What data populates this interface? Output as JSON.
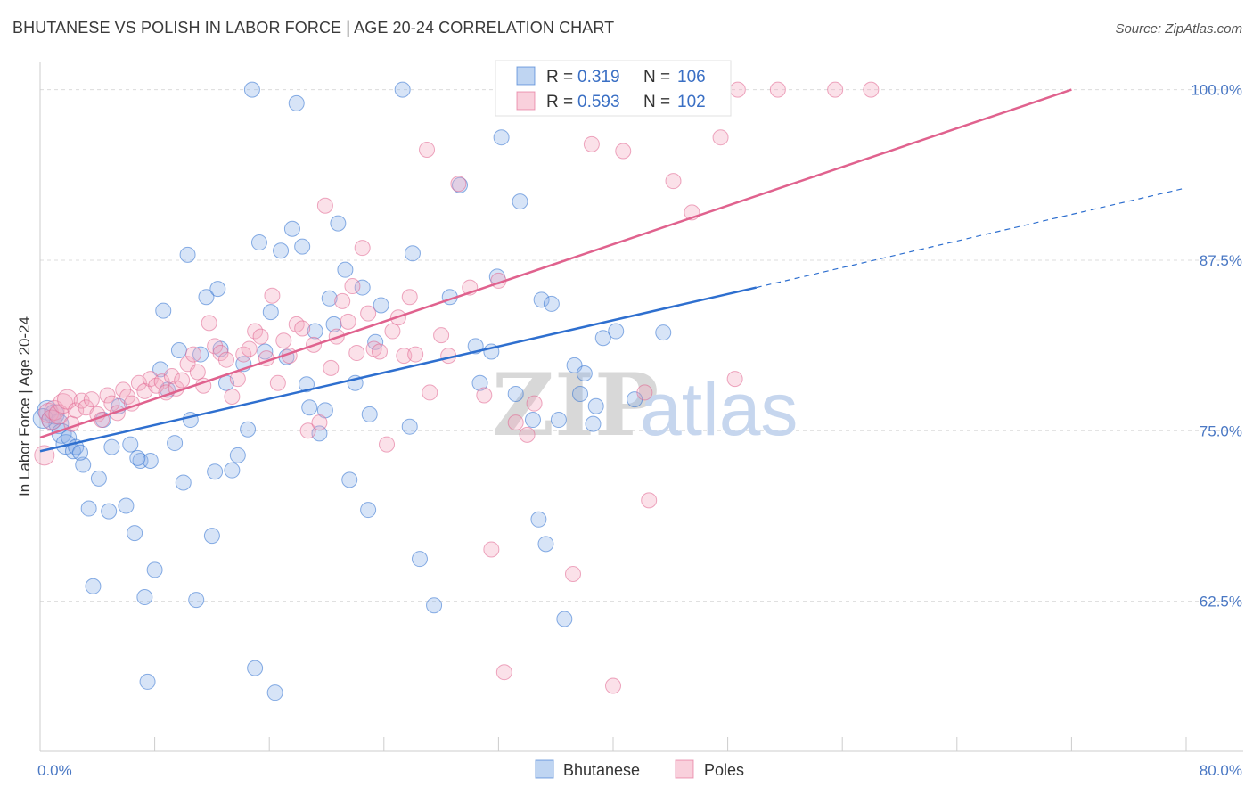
{
  "header": {
    "title": "BHUTANESE VS POLISH IN LABOR FORCE | AGE 20-24 CORRELATION CHART",
    "source_label": "Source: ZipAtlas.com"
  },
  "watermark": {
    "zip": "ZIP",
    "atlas": "atlas"
  },
  "legend": {
    "r_label": "R =",
    "n_label": "N =",
    "series": [
      {
        "name": "Bhutanese",
        "r": "0.319",
        "n": "106",
        "color": "#8bb3e8",
        "line": "#2e6fcf"
      },
      {
        "name": "Poles",
        "r": "0.593",
        "n": "102",
        "color": "#f4a9c0",
        "line": "#e0628e"
      }
    ]
  },
  "chart_data": {
    "type": "scatter",
    "title": "BHUTANESE VS POLISH IN LABOR FORCE | AGE 20-24 CORRELATION CHART",
    "xlabel": "",
    "ylabel": "In Labor Force | Age 20-24",
    "xlim": [
      0,
      80
    ],
    "ylim": [
      51.5,
      102
    ],
    "x_tick_labels": [
      "0.0%",
      "80.0%"
    ],
    "y_ticks": [
      62.5,
      75.0,
      87.5,
      100.0
    ],
    "y_tick_labels": [
      "62.5%",
      "75.0%",
      "87.5%",
      "100.0%"
    ],
    "grid": true,
    "legend_position": "top-center",
    "series": [
      {
        "name": "Bhutanese",
        "trend": {
          "x": [
            0,
            50
          ],
          "y": [
            73.5,
            85.5
          ],
          "extrapolate_to": [
            80,
            92.8
          ]
        },
        "points": [
          [
            0.5,
            76.5
          ],
          [
            0.8,
            75.8
          ],
          [
            1.0,
            76.2
          ],
          [
            1.3,
            75.5
          ],
          [
            1.5,
            74.8
          ],
          [
            1.8,
            74.0
          ],
          [
            2.0,
            74.5
          ],
          [
            2.3,
            73.5
          ],
          [
            2.5,
            73.8
          ],
          [
            3.0,
            72.5
          ],
          [
            3.4,
            69.3
          ],
          [
            3.7,
            63.6
          ],
          [
            4.1,
            71.5
          ],
          [
            4.4,
            75.8
          ],
          [
            4.8,
            69.1
          ],
          [
            5.0,
            73.8
          ],
          [
            5.5,
            76.8
          ],
          [
            6.0,
            69.5
          ],
          [
            6.3,
            74.0
          ],
          [
            6.6,
            67.5
          ],
          [
            7.0,
            72.8
          ],
          [
            7.3,
            62.8
          ],
          [
            7.5,
            56.6
          ],
          [
            7.7,
            72.8
          ],
          [
            8.0,
            64.8
          ],
          [
            8.4,
            79.5
          ],
          [
            8.6,
            83.8
          ],
          [
            8.9,
            78.0
          ],
          [
            9.4,
            74.1
          ],
          [
            9.7,
            80.9
          ],
          [
            10.0,
            71.2
          ],
          [
            10.3,
            87.9
          ],
          [
            10.5,
            75.8
          ],
          [
            10.9,
            62.6
          ],
          [
            11.2,
            80.6
          ],
          [
            11.6,
            84.8
          ],
          [
            12.0,
            67.3
          ],
          [
            12.4,
            85.4
          ],
          [
            12.6,
            81.0
          ],
          [
            13.0,
            78.5
          ],
          [
            13.4,
            72.1
          ],
          [
            13.8,
            73.2
          ],
          [
            14.2,
            79.9
          ],
          [
            14.5,
            75.1
          ],
          [
            14.8,
            100.0
          ],
          [
            15.0,
            57.6
          ],
          [
            15.3,
            88.8
          ],
          [
            15.7,
            80.8
          ],
          [
            16.1,
            83.7
          ],
          [
            16.4,
            55.8
          ],
          [
            16.8,
            88.2
          ],
          [
            17.2,
            80.4
          ],
          [
            17.6,
            89.8
          ],
          [
            17.9,
            99.0
          ],
          [
            18.3,
            88.5
          ],
          [
            18.6,
            78.4
          ],
          [
            18.8,
            76.7
          ],
          [
            19.2,
            82.3
          ],
          [
            19.5,
            74.8
          ],
          [
            19.9,
            76.5
          ],
          [
            20.2,
            84.7
          ],
          [
            20.5,
            82.8
          ],
          [
            20.8,
            90.2
          ],
          [
            21.3,
            86.8
          ],
          [
            21.6,
            71.4
          ],
          [
            22.0,
            78.5
          ],
          [
            22.5,
            85.5
          ],
          [
            22.9,
            69.2
          ],
          [
            23.0,
            76.2
          ],
          [
            23.4,
            81.5
          ],
          [
            23.8,
            84.2
          ],
          [
            25.3,
            100.0
          ],
          [
            25.8,
            75.3
          ],
          [
            26.0,
            88.0
          ],
          [
            26.5,
            65.6
          ],
          [
            27.5,
            62.2
          ],
          [
            28.6,
            84.8
          ],
          [
            29.3,
            93.0
          ],
          [
            30.4,
            81.2
          ],
          [
            30.7,
            78.5
          ],
          [
            31.5,
            80.8
          ],
          [
            31.9,
            86.3
          ],
          [
            32.2,
            96.5
          ],
          [
            33.2,
            77.7
          ],
          [
            33.5,
            91.8
          ],
          [
            34.4,
            75.8
          ],
          [
            34.8,
            68.5
          ],
          [
            35.0,
            84.6
          ],
          [
            35.3,
            66.7
          ],
          [
            35.7,
            84.3
          ],
          [
            36.2,
            75.8
          ],
          [
            36.6,
            61.2
          ],
          [
            37.3,
            79.8
          ],
          [
            37.7,
            77.7
          ],
          [
            38.0,
            79.2
          ],
          [
            38.6,
            75.5
          ],
          [
            38.8,
            76.8
          ],
          [
            39.3,
            81.8
          ],
          [
            40.2,
            82.3
          ],
          [
            41.5,
            77.3
          ],
          [
            43.5,
            82.2
          ],
          [
            40.8,
            100.0
          ],
          [
            0.2,
            75.9
          ],
          [
            2.8,
            73.4
          ],
          [
            6.8,
            73.0
          ],
          [
            12.2,
            72.0
          ]
        ]
      },
      {
        "name": "Poles",
        "trend": {
          "x": [
            0,
            72
          ],
          "y": [
            74.5,
            100.0
          ]
        },
        "points": [
          [
            0.3,
            73.2
          ],
          [
            0.6,
            76.3
          ],
          [
            0.8,
            75.8
          ],
          [
            1.0,
            76.5
          ],
          [
            1.3,
            76.2
          ],
          [
            1.6,
            77.0
          ],
          [
            1.9,
            77.3
          ],
          [
            2.2,
            75.5
          ],
          [
            2.5,
            76.5
          ],
          [
            2.9,
            77.2
          ],
          [
            3.2,
            76.7
          ],
          [
            3.6,
            77.3
          ],
          [
            4.0,
            76.2
          ],
          [
            4.3,
            75.8
          ],
          [
            4.7,
            77.6
          ],
          [
            5.0,
            77.0
          ],
          [
            5.4,
            76.3
          ],
          [
            5.8,
            78.0
          ],
          [
            6.1,
            77.5
          ],
          [
            6.4,
            77.0
          ],
          [
            6.9,
            78.5
          ],
          [
            7.3,
            77.9
          ],
          [
            7.7,
            78.8
          ],
          [
            8.1,
            78.3
          ],
          [
            8.5,
            78.6
          ],
          [
            8.8,
            77.8
          ],
          [
            9.2,
            79.0
          ],
          [
            9.5,
            78.1
          ],
          [
            9.9,
            78.7
          ],
          [
            10.3,
            79.9
          ],
          [
            10.7,
            80.6
          ],
          [
            11.0,
            79.3
          ],
          [
            11.4,
            78.3
          ],
          [
            11.8,
            82.9
          ],
          [
            12.2,
            81.2
          ],
          [
            12.6,
            80.7
          ],
          [
            13.0,
            80.2
          ],
          [
            13.4,
            77.5
          ],
          [
            13.8,
            78.8
          ],
          [
            14.2,
            80.6
          ],
          [
            14.6,
            81.0
          ],
          [
            15.0,
            82.3
          ],
          [
            15.4,
            81.9
          ],
          [
            15.8,
            80.3
          ],
          [
            16.2,
            84.9
          ],
          [
            16.6,
            78.5
          ],
          [
            17.0,
            81.6
          ],
          [
            17.4,
            80.5
          ],
          [
            17.9,
            82.8
          ],
          [
            18.3,
            82.5
          ],
          [
            18.7,
            75.0
          ],
          [
            19.1,
            81.3
          ],
          [
            19.5,
            75.6
          ],
          [
            19.9,
            91.5
          ],
          [
            20.3,
            79.6
          ],
          [
            20.7,
            81.9
          ],
          [
            21.1,
            84.5
          ],
          [
            21.5,
            83.0
          ],
          [
            21.8,
            85.6
          ],
          [
            22.1,
            80.7
          ],
          [
            22.5,
            88.4
          ],
          [
            22.9,
            83.6
          ],
          [
            23.3,
            81.0
          ],
          [
            23.7,
            80.8
          ],
          [
            24.2,
            74.0
          ],
          [
            24.6,
            82.3
          ],
          [
            25.0,
            83.3
          ],
          [
            25.4,
            80.5
          ],
          [
            25.8,
            84.8
          ],
          [
            26.2,
            80.6
          ],
          [
            27.0,
            95.6
          ],
          [
            27.2,
            77.8
          ],
          [
            28.0,
            82.0
          ],
          [
            28.5,
            80.5
          ],
          [
            29.2,
            93.1
          ],
          [
            30.0,
            85.5
          ],
          [
            31.0,
            77.6
          ],
          [
            31.5,
            66.3
          ],
          [
            32.0,
            86.0
          ],
          [
            32.4,
            57.3
          ],
          [
            33.2,
            75.6
          ],
          [
            34.0,
            74.7
          ],
          [
            34.5,
            77.0
          ],
          [
            37.2,
            64.5
          ],
          [
            38.5,
            96.0
          ],
          [
            40.0,
            56.3
          ],
          [
            40.7,
            95.5
          ],
          [
            42.2,
            77.8
          ],
          [
            42.5,
            69.9
          ],
          [
            44.2,
            93.3
          ],
          [
            45.5,
            91.0
          ],
          [
            47.5,
            96.5
          ],
          [
            48.5,
            78.8
          ],
          [
            40.0,
            100.0
          ],
          [
            41.2,
            100.0
          ],
          [
            43.0,
            100.0
          ],
          [
            44.5,
            100.0
          ],
          [
            46.5,
            100.0
          ],
          [
            48.7,
            100.0
          ],
          [
            51.5,
            100.0
          ],
          [
            55.5,
            100.0
          ],
          [
            58.0,
            100.0
          ]
        ]
      }
    ]
  }
}
